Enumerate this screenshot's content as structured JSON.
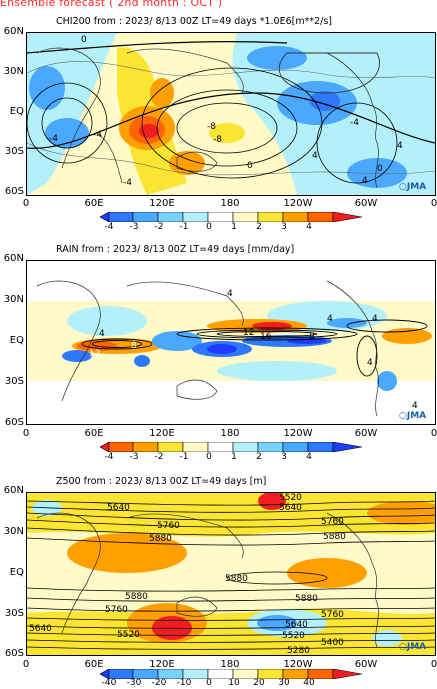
{
  "header": {
    "title": "Ensemble forecast ( 2nd month : OCT )"
  },
  "axes": {
    "lat_labels": [
      "60N",
      "30N",
      "EQ",
      "30S",
      "60S"
    ],
    "lon_labels": [
      "0",
      "60E",
      "120E",
      "180",
      "120W",
      "60W",
      "0"
    ]
  },
  "branding": {
    "jma": "JMA"
  },
  "panels": [
    {
      "title": "CHI200   from : 2023/  8/13 00Z LT=49 days   *1.0E6[m**2/s]",
      "colorbar": [
        "-4",
        "-3",
        "-2",
        "-1",
        "0",
        "1",
        "2",
        "3",
        "4"
      ],
      "contour_labels": [
        "0",
        "-4",
        "-8",
        "-8",
        "-4",
        "-4",
        "4",
        "4",
        "0",
        "0",
        "-4",
        "4"
      ]
    },
    {
      "title": "RAIN   from : 2023/  8/13 00Z LT=49 days   [mm/day]",
      "colorbar": [
        "-4",
        "-3",
        "-2",
        "-1",
        "0",
        "1",
        "2",
        "3",
        "4"
      ],
      "contour_labels": [
        "4",
        "12",
        "8",
        "12",
        "16",
        "8",
        "4",
        "4",
        "4",
        "4",
        "4"
      ]
    },
    {
      "title": "Z500   from : 2023/  8/13 00Z LT=49 days   [m]",
      "colorbar": [
        "-40",
        "-30",
        "-20",
        "-10",
        "0",
        "10",
        "20",
        "30",
        "40"
      ],
      "contour_labels": [
        "5640",
        "5520",
        "5640",
        "5760",
        "5880",
        "5760",
        "5880",
        "5880",
        "5880",
        "5880",
        "5760",
        "5640",
        "5760",
        "5640",
        "5520",
        "5520",
        "5400",
        "5280"
      ]
    }
  ],
  "colors": {
    "neg": [
      "#1e3cff",
      "#2d78ff",
      "#4aa8ff",
      "#b4f0fa"
    ],
    "pos": [
      "#fffac8",
      "#fae632",
      "#ffa000",
      "#ff6400",
      "#f01e1e"
    ],
    "precip_neg": [
      "#ff6400",
      "#ffa000",
      "#fae632",
      "#fffac8"
    ],
    "precip_pos": [
      "#b4f0fa",
      "#4aa8ff",
      "#2d78ff",
      "#1e3cff"
    ]
  }
}
